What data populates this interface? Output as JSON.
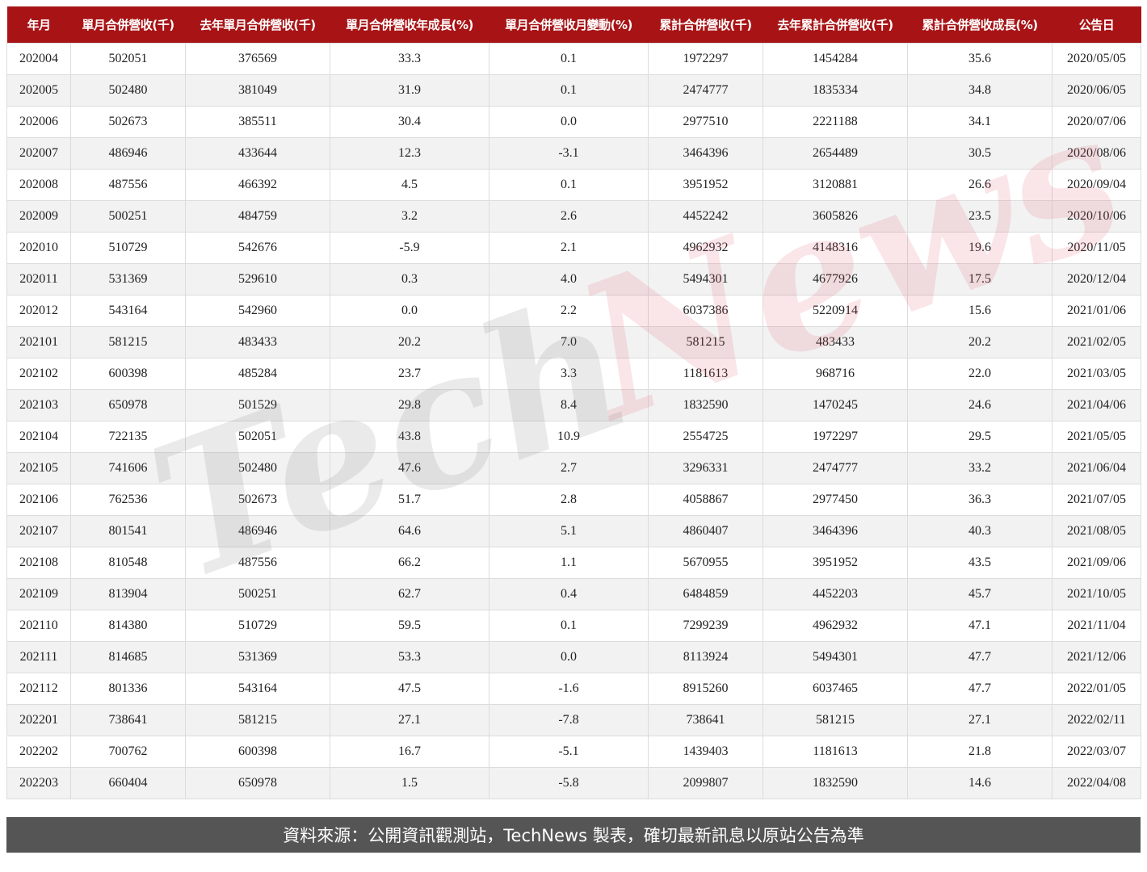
{
  "table": {
    "headers": [
      "年月",
      "單月合併營收(千)",
      "去年單月合併營收(千)",
      "單月合併營收年成長(%)",
      "單月合併營收月變動(%)",
      "累計合併營收(千)",
      "去年累計合併營收(千)",
      "累計合併營收成長(%)",
      "公告日"
    ],
    "rows": [
      [
        "202004",
        "502051",
        "376569",
        "33.3",
        "0.1",
        "1972297",
        "1454284",
        "35.6",
        "2020/05/05"
      ],
      [
        "202005",
        "502480",
        "381049",
        "31.9",
        "0.1",
        "2474777",
        "1835334",
        "34.8",
        "2020/06/05"
      ],
      [
        "202006",
        "502673",
        "385511",
        "30.4",
        "0.0",
        "2977510",
        "2221188",
        "34.1",
        "2020/07/06"
      ],
      [
        "202007",
        "486946",
        "433644",
        "12.3",
        "-3.1",
        "3464396",
        "2654489",
        "30.5",
        "2020/08/06"
      ],
      [
        "202008",
        "487556",
        "466392",
        "4.5",
        "0.1",
        "3951952",
        "3120881",
        "26.6",
        "2020/09/04"
      ],
      [
        "202009",
        "500251",
        "484759",
        "3.2",
        "2.6",
        "4452242",
        "3605826",
        "23.5",
        "2020/10/06"
      ],
      [
        "202010",
        "510729",
        "542676",
        "-5.9",
        "2.1",
        "4962932",
        "4148316",
        "19.6",
        "2020/11/05"
      ],
      [
        "202011",
        "531369",
        "529610",
        "0.3",
        "4.0",
        "5494301",
        "4677926",
        "17.5",
        "2020/12/04"
      ],
      [
        "202012",
        "543164",
        "542960",
        "0.0",
        "2.2",
        "6037386",
        "5220914",
        "15.6",
        "2021/01/06"
      ],
      [
        "202101",
        "581215",
        "483433",
        "20.2",
        "7.0",
        "581215",
        "483433",
        "20.2",
        "2021/02/05"
      ],
      [
        "202102",
        "600398",
        "485284",
        "23.7",
        "3.3",
        "1181613",
        "968716",
        "22.0",
        "2021/03/05"
      ],
      [
        "202103",
        "650978",
        "501529",
        "29.8",
        "8.4",
        "1832590",
        "1470245",
        "24.6",
        "2021/04/06"
      ],
      [
        "202104",
        "722135",
        "502051",
        "43.8",
        "10.9",
        "2554725",
        "1972297",
        "29.5",
        "2021/05/05"
      ],
      [
        "202105",
        "741606",
        "502480",
        "47.6",
        "2.7",
        "3296331",
        "2474777",
        "33.2",
        "2021/06/04"
      ],
      [
        "202106",
        "762536",
        "502673",
        "51.7",
        "2.8",
        "4058867",
        "2977450",
        "36.3",
        "2021/07/05"
      ],
      [
        "202107",
        "801541",
        "486946",
        "64.6",
        "5.1",
        "4860407",
        "3464396",
        "40.3",
        "2021/08/05"
      ],
      [
        "202108",
        "810548",
        "487556",
        "66.2",
        "1.1",
        "5670955",
        "3951952",
        "43.5",
        "2021/09/06"
      ],
      [
        "202109",
        "813904",
        "500251",
        "62.7",
        "0.4",
        "6484859",
        "4452203",
        "45.7",
        "2021/10/05"
      ],
      [
        "202110",
        "814380",
        "510729",
        "59.5",
        "0.1",
        "7299239",
        "4962932",
        "47.1",
        "2021/11/04"
      ],
      [
        "202111",
        "814685",
        "531369",
        "53.3",
        "0.0",
        "8113924",
        "5494301",
        "47.7",
        "2021/12/06"
      ],
      [
        "202112",
        "801336",
        "543164",
        "47.5",
        "-1.6",
        "8915260",
        "6037465",
        "47.7",
        "2022/01/05"
      ],
      [
        "202201",
        "738641",
        "581215",
        "27.1",
        "-7.8",
        "738641",
        "581215",
        "27.1",
        "2022/02/11"
      ],
      [
        "202202",
        "700762",
        "600398",
        "16.7",
        "-5.1",
        "1439403",
        "1181613",
        "21.8",
        "2022/03/07"
      ],
      [
        "202203",
        "660404",
        "650978",
        "1.5",
        "-5.8",
        "2099807",
        "1832590",
        "14.6",
        "2022/04/08"
      ]
    ]
  },
  "watermark": {
    "part1": "Tech",
    "part2": "News"
  },
  "footer": {
    "text": "資料來源：公開資訊觀測站，TechNews 製表，確切最新訊息以原站公告為準"
  },
  "colors": {
    "header_bg": "#a81416",
    "footer_bg": "#555555",
    "stripe": "#f2f2f2"
  }
}
